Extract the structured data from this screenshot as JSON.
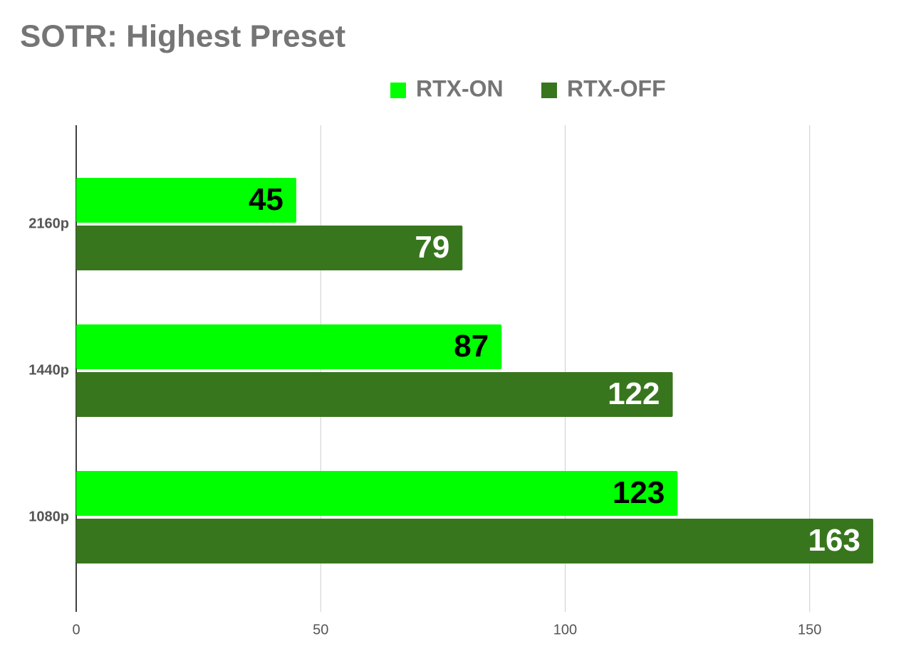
{
  "chart_data": {
    "type": "hbar",
    "title": "SOTR: Highest Preset",
    "categories": [
      "2160p",
      "1440p",
      "1080p"
    ],
    "series": [
      {
        "name": "RTX-ON",
        "color": "#00ff00",
        "values": [
          45,
          87,
          123
        ]
      },
      {
        "name": "RTX-OFF",
        "color": "#38761d",
        "values": [
          79,
          122,
          163
        ]
      }
    ],
    "xlim": [
      0,
      170
    ],
    "xticks": [
      0,
      50,
      100,
      150
    ],
    "grid": true,
    "legend": "top"
  }
}
